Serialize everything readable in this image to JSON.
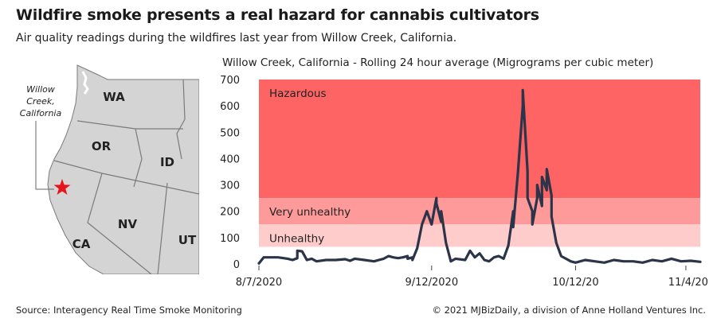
{
  "header": {
    "title": "Wildfire smoke presents a real hazard for cannabis cultivators",
    "subtitle": "Air quality readings during the wildfires last year from Willow Creek, California."
  },
  "map": {
    "states": [
      "WA",
      "OR",
      "ID",
      "CA",
      "NV",
      "UT"
    ],
    "callout_lines": [
      "Willow",
      "Creek,",
      "California"
    ],
    "marker_icon": "red-star-icon",
    "marker_color": "#e8141b"
  },
  "footer": {
    "source": "Source: Interagency Real Time Smoke Monitoring",
    "copyright": "© 2021 MJBizDaily, a division of Anne Holland Ventures Inc."
  },
  "chart_data": {
    "type": "line",
    "title": "Willow Creek, California - Rolling 24 hour average (Migrograms per cubic meter)",
    "xlabel": "",
    "ylabel": "",
    "ylim": [
      0,
      700
    ],
    "y_ticks": [
      0,
      100,
      200,
      300,
      400,
      500,
      600,
      700
    ],
    "x_range": [
      "2020-08-07",
      "2020-11-07"
    ],
    "x_ticks": [
      {
        "date": "2020-08-07",
        "label": "8/7/2020"
      },
      {
        "date": "2020-09-12",
        "label": "9/12/2020"
      },
      {
        "date": "2020-10-12",
        "label": "10/12/20"
      },
      {
        "date": "2020-11-04",
        "label": "11/4/20"
      }
    ],
    "bands": [
      {
        "label": "Hazardous",
        "from": 250,
        "to": 700,
        "color": "#ff6464"
      },
      {
        "label": "Very unhealthy",
        "from": 150,
        "to": 250,
        "color": "#ff9a9a"
      },
      {
        "label": "Unhealthy",
        "from": 65,
        "to": 150,
        "color": "#ffcccc"
      }
    ],
    "line_color": "#2b3448",
    "grid": false,
    "series": [
      {
        "x": [
          "2020-08-07",
          "2020-08-08",
          "2020-08-09",
          "2020-08-11",
          "2020-08-13",
          "2020-08-14",
          "2020-08-15",
          "2020-08-15",
          "2020-08-16",
          "2020-08-17",
          "2020-08-18",
          "2020-08-19",
          "2020-08-21",
          "2020-08-23",
          "2020-08-25",
          "2020-08-26",
          "2020-08-27",
          "2020-08-29",
          "2020-08-31",
          "2020-09-01",
          "2020-09-02",
          "2020-09-03",
          "2020-09-04",
          "2020-09-05",
          "2020-09-06",
          "2020-09-07",
          "2020-09-07",
          "2020-09-08",
          "2020-09-08",
          "2020-09-09",
          "2020-09-10",
          "2020-09-11",
          "2020-09-12",
          "2020-09-13",
          "2020-09-13",
          "2020-09-14",
          "2020-09-14",
          "2020-09-15",
          "2020-09-16",
          "2020-09-17",
          "2020-09-19",
          "2020-09-20",
          "2020-09-21",
          "2020-09-22",
          "2020-09-23",
          "2020-09-24",
          "2020-09-25",
          "2020-09-26",
          "2020-09-27",
          "2020-09-28",
          "2020-09-29",
          "2020-09-29",
          "2020-09-30",
          "2020-10-01",
          "2020-10-01",
          "2020-10-02",
          "2020-10-02",
          "2020-10-03",
          "2020-10-03",
          "2020-10-04",
          "2020-10-04",
          "2020-10-05",
          "2020-10-05",
          "2020-10-06",
          "2020-10-06",
          "2020-10-07",
          "2020-10-07",
          "2020-10-08",
          "2020-10-09",
          "2020-10-10",
          "2020-10-11",
          "2020-10-12",
          "2020-10-14",
          "2020-10-16",
          "2020-10-18",
          "2020-10-20",
          "2020-10-22",
          "2020-10-24",
          "2020-10-26",
          "2020-10-28",
          "2020-10-30",
          "2020-11-01",
          "2020-11-03",
          "2020-11-05",
          "2020-11-07"
        ],
        "values": [
          2,
          25,
          25,
          25,
          20,
          15,
          22,
          50,
          48,
          15,
          20,
          10,
          15,
          15,
          18,
          12,
          20,
          15,
          10,
          15,
          20,
          30,
          25,
          22,
          25,
          30,
          20,
          25,
          15,
          60,
          150,
          200,
          150,
          250,
          230,
          160,
          200,
          80,
          10,
          20,
          15,
          50,
          25,
          40,
          15,
          10,
          25,
          30,
          20,
          70,
          200,
          140,
          350,
          600,
          660,
          350,
          250,
          200,
          150,
          250,
          300,
          220,
          330,
          280,
          360,
          260,
          180,
          80,
          30,
          20,
          10,
          5,
          15,
          10,
          5,
          15,
          10,
          10,
          5,
          15,
          10,
          20,
          10,
          12,
          8
        ]
      }
    ]
  }
}
